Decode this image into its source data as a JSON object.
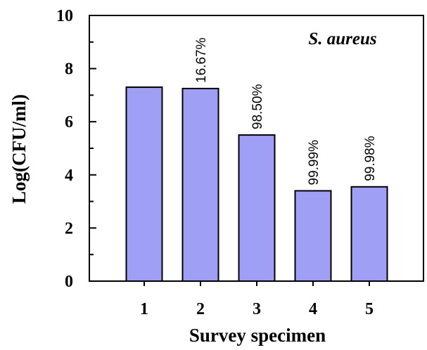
{
  "chart_data": {
    "type": "bar",
    "title": "S. aureus",
    "xlabel": "Survey specimen",
    "ylabel": "Log(CFU/ml)",
    "categories": [
      "1",
      "2",
      "3",
      "4",
      "5"
    ],
    "values": [
      7.3,
      7.25,
      5.5,
      3.4,
      3.55
    ],
    "annotations": [
      "",
      "16.67%",
      "98.50%",
      "99.99%",
      "99.98%"
    ],
    "ylim": [
      0,
      10
    ],
    "yticks": [
      "0",
      "2",
      "4",
      "6",
      "8",
      "10"
    ],
    "grid": false,
    "bar_color": "#9f9ff5"
  }
}
